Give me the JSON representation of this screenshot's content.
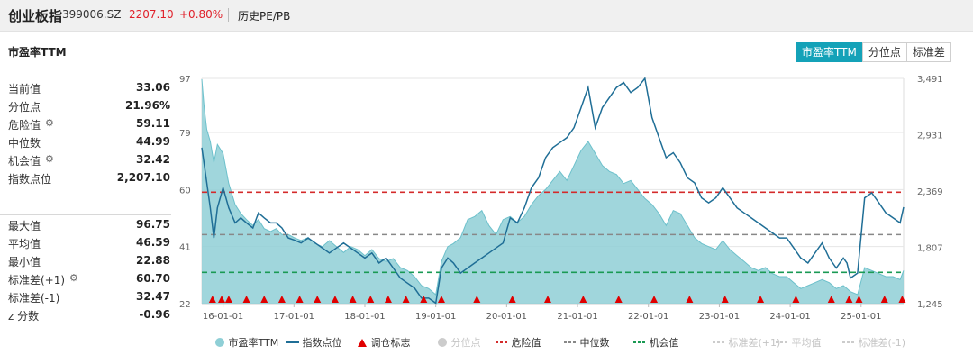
{
  "header": {
    "index_name": "创业板指",
    "code": "399006.SZ",
    "price": "2207.10",
    "change": "+0.80%",
    "history_label": "历史PE/PB"
  },
  "panel": {
    "title": "市盈率TTM",
    "tabs": [
      "市盈率TTM",
      "分位点",
      "标准差"
    ],
    "active_tab": 0
  },
  "stats_top": [
    {
      "label": "当前值",
      "value": "33.06",
      "gear": false
    },
    {
      "label": "分位点",
      "value": "21.96%",
      "gear": false
    },
    {
      "label": "危险值",
      "value": "59.11",
      "gear": true
    },
    {
      "label": "中位数",
      "value": "44.99",
      "gear": false
    },
    {
      "label": "机会值",
      "value": "32.42",
      "gear": true
    },
    {
      "label": "指数点位",
      "value": "2,207.10",
      "gear": false
    }
  ],
  "stats_bottom": [
    {
      "label": "最大值",
      "value": "96.75",
      "gear": false
    },
    {
      "label": "平均值",
      "value": "46.59",
      "gear": false
    },
    {
      "label": "最小值",
      "value": "22.88",
      "gear": false
    },
    {
      "label": "标准差(+1)",
      "value": "60.70",
      "gear": true
    },
    {
      "label": "标准差(-1)",
      "value": "32.47",
      "gear": false
    },
    {
      "label": "z 分数",
      "value": "-0.96",
      "gear": false
    }
  ],
  "colors": {
    "pe_fill": "#8fcfd6",
    "pe_line": "#6cc0cb",
    "index_line": "#1f6e96",
    "danger": "#d42b2b",
    "median": "#888888",
    "opportunity": "#1a9a54",
    "marker": "#e00000",
    "accent": "#14a2b8"
  },
  "chart_data": {
    "type": "area",
    "title": "",
    "xlabel": "",
    "ylabel": "",
    "x_range": [
      2015.7,
      2025.6
    ],
    "x_ticks": [
      {
        "x": 2016.0,
        "label": "16-01-01"
      },
      {
        "x": 2017.0,
        "label": "17-01-01"
      },
      {
        "x": 2018.0,
        "label": "18-01-01"
      },
      {
        "x": 2019.0,
        "label": "19-01-01"
      },
      {
        "x": 2020.0,
        "label": "20-01-01"
      },
      {
        "x": 2021.0,
        "label": "21-01-01"
      },
      {
        "x": 2022.0,
        "label": "22-01-01"
      },
      {
        "x": 2023.0,
        "label": "23-01-01"
      },
      {
        "x": 2024.0,
        "label": "24-01-01"
      },
      {
        "x": 2025.0,
        "label": "25-01-01"
      }
    ],
    "left_axis": {
      "min": 22,
      "max": 97,
      "ticks": [
        22,
        41,
        60,
        79,
        97
      ]
    },
    "right_axis": {
      "min": 1245,
      "max": 3491,
      "ticks": [
        "1,245",
        "1,807",
        "2,369",
        "2,931",
        "3,491"
      ]
    },
    "reference_lines": {
      "danger": 59.11,
      "median": 44.99,
      "opportunity": 32.42
    },
    "series": [
      {
        "name": "市盈率TTM",
        "axis": "left",
        "x": [
          2015.7,
          2015.73,
          2015.77,
          2015.82,
          2015.87,
          2015.92,
          2016.0,
          2016.08,
          2016.17,
          2016.25,
          2016.33,
          2016.42,
          2016.5,
          2016.58,
          2016.67,
          2016.75,
          2016.83,
          2016.92,
          2017.0,
          2017.1,
          2017.2,
          2017.3,
          2017.4,
          2017.5,
          2017.6,
          2017.7,
          2017.8,
          2017.9,
          2018.0,
          2018.1,
          2018.2,
          2018.3,
          2018.4,
          2018.5,
          2018.6,
          2018.7,
          2018.8,
          2018.9,
          2019.0,
          2019.08,
          2019.17,
          2019.25,
          2019.35,
          2019.45,
          2019.55,
          2019.65,
          2019.75,
          2019.85,
          2019.95,
          2020.05,
          2020.15,
          2020.25,
          2020.35,
          2020.45,
          2020.55,
          2020.65,
          2020.75,
          2020.85,
          2020.95,
          2021.05,
          2021.15,
          2021.25,
          2021.35,
          2021.45,
          2021.55,
          2021.65,
          2021.75,
          2021.85,
          2021.95,
          2022.05,
          2022.15,
          2022.25,
          2022.35,
          2022.45,
          2022.55,
          2022.65,
          2022.75,
          2022.85,
          2022.95,
          2023.05,
          2023.15,
          2023.25,
          2023.35,
          2023.45,
          2023.55,
          2023.65,
          2023.75,
          2023.85,
          2023.95,
          2024.05,
          2024.15,
          2024.25,
          2024.35,
          2024.45,
          2024.55,
          2024.65,
          2024.75,
          2024.8,
          2024.85,
          2024.95,
          2025.05,
          2025.15,
          2025.25,
          2025.35,
          2025.45,
          2025.55,
          2025.6
        ],
        "values": [
          96.7,
          88,
          80,
          76,
          69,
          75,
          72,
          62,
          55,
          52,
          50,
          48,
          50,
          47,
          46,
          47,
          45,
          45,
          44,
          43,
          44,
          42,
          41,
          43,
          41,
          39,
          41,
          40,
          38,
          40,
          37,
          36,
          37,
          34,
          33,
          31,
          28,
          27,
          25,
          36,
          41,
          42,
          44,
          50,
          51,
          53,
          48,
          45,
          50,
          51,
          49,
          51,
          55,
          58,
          60,
          63,
          66,
          63,
          68,
          73,
          76,
          72,
          68,
          66,
          65,
          62,
          63,
          60,
          57,
          55,
          52,
          48,
          53,
          52,
          48,
          44,
          42,
          41,
          40,
          43,
          40,
          38,
          36,
          34,
          33,
          34,
          32,
          31,
          31,
          29,
          27,
          28,
          29,
          30,
          29,
          27,
          28,
          27,
          26,
          25,
          34,
          33,
          32,
          31,
          31,
          30,
          33
        ]
      },
      {
        "name": "指数点位",
        "axis": "right",
        "x": [
          2015.7,
          2015.73,
          2015.77,
          2015.82,
          2015.87,
          2015.92,
          2016.0,
          2016.08,
          2016.17,
          2016.25,
          2016.33,
          2016.42,
          2016.5,
          2016.58,
          2016.67,
          2016.75,
          2016.83,
          2016.92,
          2017.0,
          2017.1,
          2017.2,
          2017.3,
          2017.4,
          2017.5,
          2017.6,
          2017.7,
          2017.8,
          2017.9,
          2018.0,
          2018.1,
          2018.2,
          2018.3,
          2018.4,
          2018.5,
          2018.6,
          2018.7,
          2018.8,
          2018.9,
          2019.0,
          2019.08,
          2019.17,
          2019.25,
          2019.35,
          2019.45,
          2019.55,
          2019.65,
          2019.75,
          2019.85,
          2019.95,
          2020.05,
          2020.15,
          2020.25,
          2020.35,
          2020.45,
          2020.55,
          2020.65,
          2020.75,
          2020.85,
          2020.95,
          2021.05,
          2021.15,
          2021.25,
          2021.35,
          2021.45,
          2021.55,
          2021.65,
          2021.75,
          2021.85,
          2021.95,
          2022.05,
          2022.15,
          2022.25,
          2022.35,
          2022.45,
          2022.55,
          2022.65,
          2022.75,
          2022.85,
          2022.95,
          2023.05,
          2023.15,
          2023.25,
          2023.35,
          2023.45,
          2023.55,
          2023.65,
          2023.75,
          2023.85,
          2023.95,
          2024.05,
          2024.15,
          2024.25,
          2024.35,
          2024.45,
          2024.55,
          2024.65,
          2024.75,
          2024.8,
          2024.85,
          2024.95,
          2025.05,
          2025.15,
          2025.25,
          2025.35,
          2025.45,
          2025.55,
          2025.6
        ],
        "values": [
          2800,
          2650,
          2450,
          2200,
          1900,
          2200,
          2400,
          2200,
          2050,
          2100,
          2050,
          2000,
          2150,
          2100,
          2050,
          2050,
          2000,
          1900,
          1880,
          1850,
          1900,
          1850,
          1800,
          1750,
          1800,
          1850,
          1800,
          1750,
          1700,
          1750,
          1650,
          1700,
          1600,
          1500,
          1450,
          1400,
          1300,
          1300,
          1250,
          1600,
          1700,
          1650,
          1550,
          1600,
          1650,
          1700,
          1750,
          1800,
          1850,
          2100,
          2050,
          2200,
          2400,
          2500,
          2700,
          2800,
          2850,
          2900,
          3000,
          3200,
          3400,
          3000,
          3200,
          3300,
          3400,
          3450,
          3350,
          3400,
          3491,
          3100,
          2900,
          2700,
          2750,
          2650,
          2500,
          2450,
          2300,
          2250,
          2300,
          2400,
          2300,
          2200,
          2150,
          2100,
          2050,
          2000,
          1950,
          1900,
          1900,
          1800,
          1700,
          1650,
          1750,
          1850,
          1700,
          1600,
          1700,
          1650,
          1500,
          1550,
          2300,
          2350,
          2250,
          2150,
          2100,
          2050,
          2207
        ]
      }
    ],
    "adjust_markers": {
      "name": "调仓标志",
      "x": [
        2015.85,
        2015.98,
        2016.08,
        2016.33,
        2016.58,
        2016.83,
        2017.08,
        2017.33,
        2017.58,
        2017.83,
        2018.08,
        2018.33,
        2018.58,
        2018.83,
        2019.08,
        2019.58,
        2020.08,
        2020.58,
        2021.08,
        2021.58,
        2022.08,
        2022.58,
        2023.08,
        2023.58,
        2024.08,
        2024.58,
        2024.83,
        2024.97,
        2025.33,
        2025.58
      ]
    },
    "legend": {
      "position": "bottom",
      "items": [
        {
          "label": "市盈率TTM",
          "style": "area-dot",
          "color": "#8fcfd6",
          "faded": false
        },
        {
          "label": "指数点位",
          "style": "line",
          "color": "#1f6e96",
          "faded": false
        },
        {
          "label": "调仓标志",
          "style": "triangle",
          "color": "#e00000",
          "faded": false
        },
        {
          "label": "分位点",
          "style": "dot",
          "color": "#cccccc",
          "faded": true
        },
        {
          "label": "危险值",
          "style": "dash",
          "color": "#d42b2b",
          "faded": false
        },
        {
          "label": "中位数",
          "style": "dash",
          "color": "#888888",
          "faded": false
        },
        {
          "label": "机会值",
          "style": "dash",
          "color": "#1a9a54",
          "faded": false
        },
        {
          "label": "标准差(+1)",
          "style": "dash",
          "color": "#cccccc",
          "faded": true
        },
        {
          "label": "平均值",
          "style": "dash",
          "color": "#cccccc",
          "faded": true
        },
        {
          "label": "标准差(-1)",
          "style": "dash",
          "color": "#cccccc",
          "faded": true
        }
      ]
    }
  }
}
